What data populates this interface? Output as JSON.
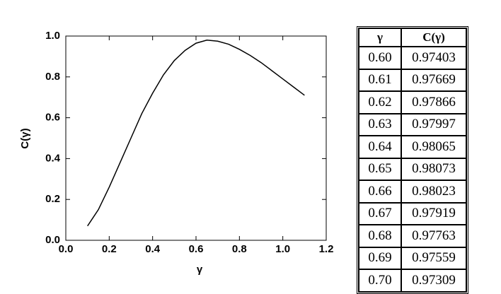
{
  "chart_data": {
    "type": "line",
    "x_label": "γ",
    "y_label": "C(γ)",
    "x": [
      0.1,
      0.15,
      0.2,
      0.25,
      0.3,
      0.35,
      0.4,
      0.45,
      0.5,
      0.55,
      0.6,
      0.65,
      0.7,
      0.75,
      0.8,
      0.85,
      0.9,
      0.95,
      1.0,
      1.05,
      1.1
    ],
    "series": [
      {
        "color": "#000000",
        "values": [
          0.07,
          0.15,
          0.26,
          0.38,
          0.5,
          0.62,
          0.72,
          0.81,
          0.88,
          0.93,
          0.965,
          0.98,
          0.975,
          0.96,
          0.935,
          0.905,
          0.87,
          0.83,
          0.79,
          0.75,
          0.71
        ]
      }
    ],
    "xlim": [
      0,
      1.2
    ],
    "xticks": [
      {
        "value": 0,
        "label": "0.0"
      },
      0.2,
      0.4,
      0.6,
      0.8,
      {
        "value": 1,
        "label": "1.0"
      },
      1.2
    ],
    "ylim": [
      0,
      1
    ],
    "yticks": [
      {
        "value": 0,
        "label": "0.0"
      },
      0.2,
      0.4,
      0.6,
      0.8,
      {
        "value": 1,
        "label": "1.0"
      }
    ]
  },
  "table": {
    "header": [
      "γ",
      "C(γ)"
    ],
    "rows": [
      [
        "0.60",
        "0.97403"
      ],
      [
        "0.61",
        "0.97669"
      ],
      [
        "0.62",
        "0.97866"
      ],
      [
        "0.63",
        "0.97997"
      ],
      [
        "0.64",
        "0.98065"
      ],
      [
        "0.65",
        "0.98073"
      ],
      [
        "0.66",
        "0.98023"
      ],
      [
        "0.67",
        "0.97919"
      ],
      [
        "0.68",
        "0.97763"
      ],
      [
        "0.69",
        "0.97559"
      ],
      [
        "0.70",
        "0.97309"
      ]
    ]
  }
}
